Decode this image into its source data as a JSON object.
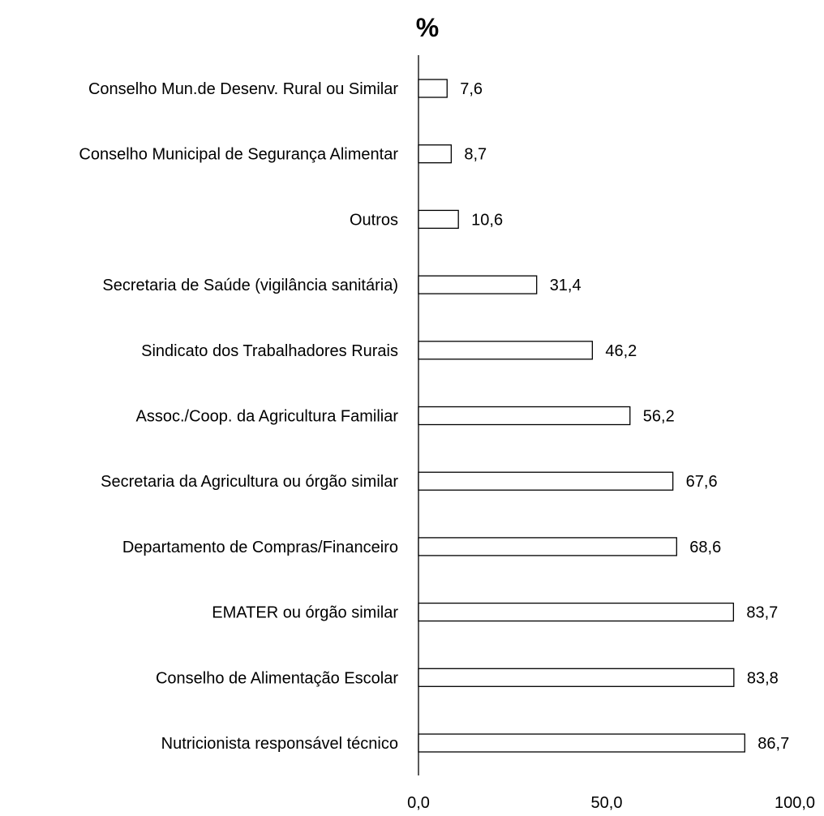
{
  "chart_data": {
    "type": "bar",
    "orientation": "horizontal",
    "title": "%",
    "xlabel": "",
    "ylabel": "",
    "xlim": [
      0,
      100
    ],
    "x_ticks": [
      "0,0",
      "50,0",
      "100,0"
    ],
    "tick_values": [
      0,
      50,
      100
    ],
    "grid": false,
    "legend": "none",
    "bar_fill": "#ffffff",
    "bar_stroke": "#000000",
    "categories": [
      "Conselho Mun.de Desenv. Rural ou Similar",
      "Conselho Municipal de Segurança Alimentar",
      "Outros",
      "Secretaria de Saúde (vigilância sanitária)",
      "Sindicato dos Trabalhadores Rurais",
      "Assoc./Coop. da Agricultura Familiar",
      "Secretaria da Agricultura ou órgão similar",
      "Departamento de Compras/Financeiro",
      "EMATER ou órgão similar",
      "Conselho de Alimentação Escolar",
      "Nutricionista responsável técnico"
    ],
    "values": [
      7.6,
      8.7,
      10.6,
      31.4,
      46.2,
      56.2,
      67.6,
      68.6,
      83.7,
      83.8,
      86.7
    ],
    "value_labels": [
      "7,6",
      "8,7",
      "10,6",
      "31,4",
      "46,2",
      "56,2",
      "67,6",
      "68,6",
      "83,7",
      "83,8",
      "86,7"
    ]
  }
}
